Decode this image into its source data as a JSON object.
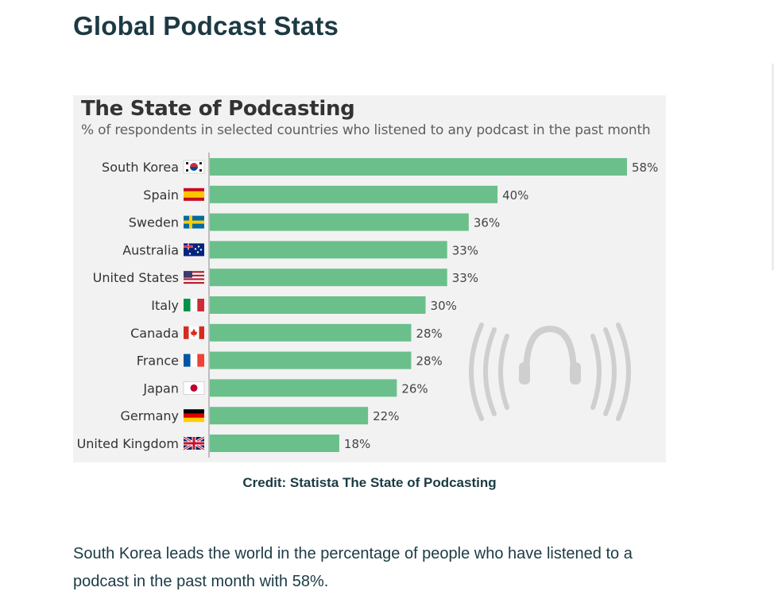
{
  "page": {
    "heading": "Global Podcast Stats",
    "caption": "Credit: Statista The State of Podcasting",
    "paragraph": "South Korea leads the world in the percentage of people who have listened to a podcast in the past month with 58%."
  },
  "chart_data": {
    "type": "bar",
    "orientation": "horizontal",
    "title": "The State of Podcasting",
    "subtitle": "% of respondents in selected countries who listened to any podcast in the past month",
    "categories": [
      "South Korea",
      "Spain",
      "Sweden",
      "Australia",
      "United States",
      "Italy",
      "Canada",
      "France",
      "Japan",
      "Germany",
      "United Kingdom"
    ],
    "values": [
      58,
      40,
      36,
      33,
      33,
      30,
      28,
      28,
      26,
      22,
      18
    ],
    "value_labels": [
      "58%",
      "40%",
      "36%",
      "33%",
      "33%",
      "30%",
      "28%",
      "28%",
      "26%",
      "22%",
      "18%"
    ],
    "flags": [
      "flag-south-korea-icon",
      "flag-spain-icon",
      "flag-sweden-icon",
      "flag-australia-icon",
      "flag-united-states-icon",
      "flag-italy-icon",
      "flag-canada-icon",
      "flag-france-icon",
      "flag-japan-icon",
      "flag-germany-icon",
      "flag-united-kingdom-icon"
    ],
    "xlim": [
      0,
      58
    ],
    "bar_color": "#6bbf8b",
    "grid": false,
    "legend": "none",
    "decoration": "headphones-icon"
  }
}
